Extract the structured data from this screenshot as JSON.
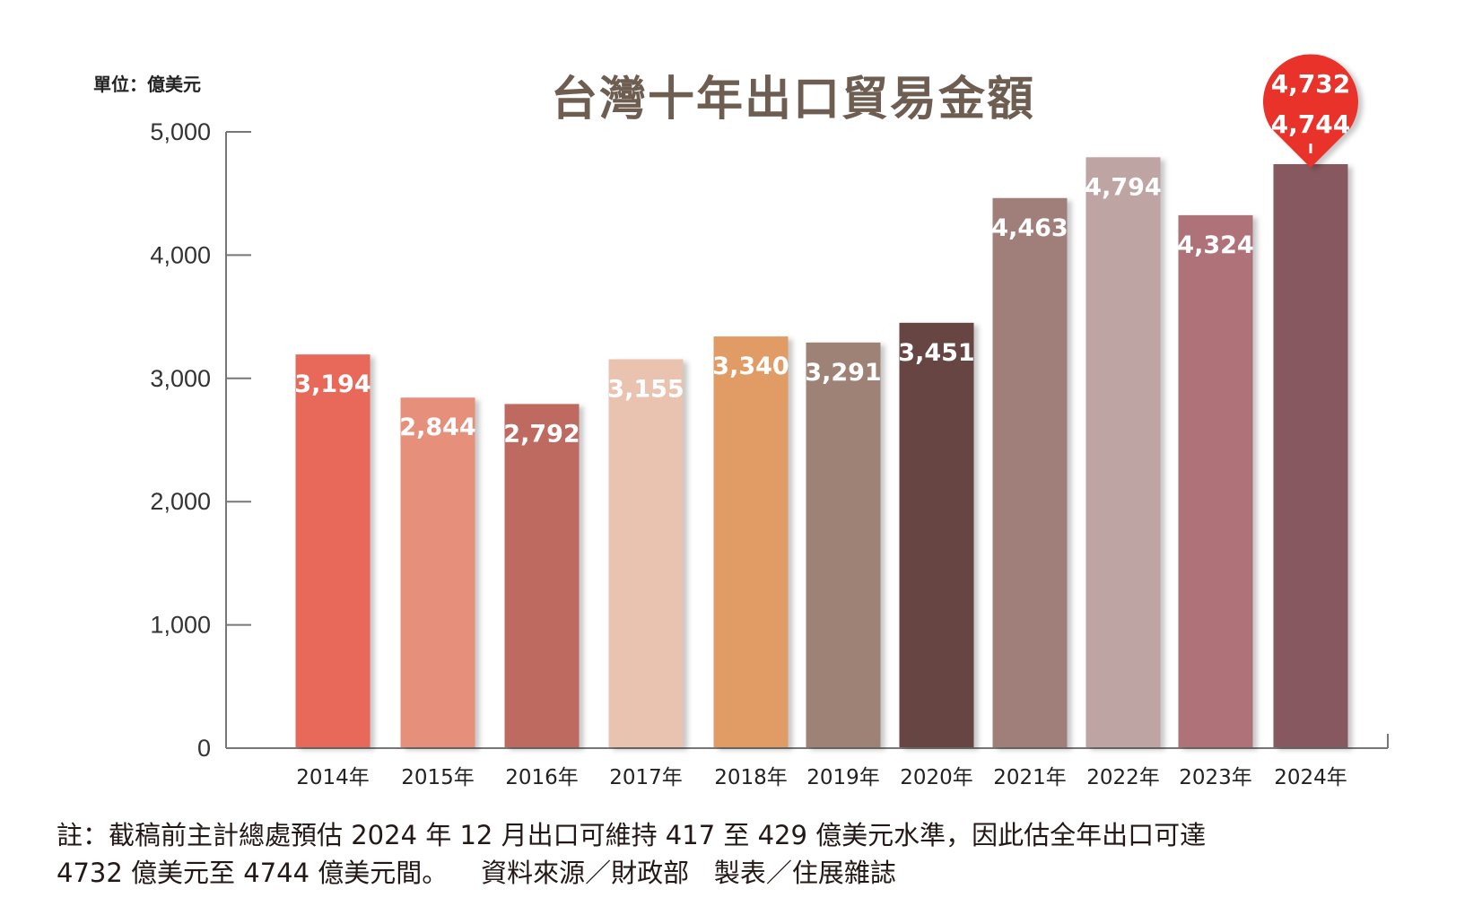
{
  "chart_data": {
    "type": "bar",
    "title": "台灣十年出口貿易金額",
    "unit_label": "單位：億美元",
    "categories": [
      "2014年",
      "2015年",
      "2016年",
      "2017年",
      "2018年",
      "2019年",
      "2020年",
      "2021年",
      "2022年",
      "2023年",
      "2024年"
    ],
    "values": [
      3194,
      2844,
      2792,
      3155,
      3340,
      3291,
      3451,
      4463,
      4794,
      4324,
      4738
    ],
    "data_labels": [
      "3,194",
      "2,844",
      "2,792",
      "3,155",
      "3,340",
      "3,291",
      "3,451",
      "4,463",
      "4,794",
      "4,324",
      ""
    ],
    "colors": [
      "#e8675a",
      "#e6907c",
      "#bf6b61",
      "#eac2b0",
      "#e19c65",
      "#9e8276",
      "#664442",
      "#a07e7a",
      "#bea4a2",
      "#b07279",
      "#87585f"
    ],
    "estimate_range_labels": [
      "4,732",
      "4,744"
    ],
    "estimate_marker_color": "#e8332a",
    "ylim": [
      0,
      5000
    ],
    "yticks": [
      0,
      1000,
      2000,
      3000,
      4000,
      5000
    ],
    "ytick_labels": [
      "0",
      "1,000",
      "2,000",
      "3,000",
      "4,000",
      "5,000"
    ],
    "grid": false
  },
  "footnote": {
    "line1": "註：截稿前主計總處預估 2024 年 12 月出口可維持 417 至 429 億美元水準，因此估全年出口可達",
    "line2": "4732 億美元至 4744 億美元間。",
    "source": "資料來源／財政部",
    "credit": "製表／住展雜誌"
  }
}
